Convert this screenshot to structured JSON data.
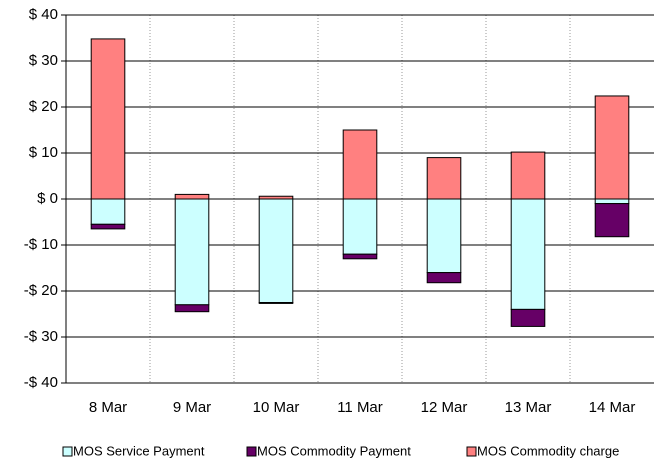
{
  "chart_data": {
    "type": "bar",
    "stacked": true,
    "categories": [
      "8 Mar",
      "9 Mar",
      "10 Mar",
      "11 Mar",
      "12 Mar",
      "13 Mar",
      "14 Mar"
    ],
    "series": [
      {
        "name": "MOS Service Payment",
        "color": "#ccffff",
        "values": [
          -5.5,
          -23,
          -22.5,
          -12,
          -16,
          -24,
          -1
        ]
      },
      {
        "name": "MOS Commodity Payment",
        "color": "#660066",
        "values": [
          -1,
          -1.5,
          -0.2,
          -1,
          -2.2,
          -3.7,
          -7.2
        ]
      },
      {
        "name": "MOS Commodity charge",
        "color": "#ff8080",
        "values": [
          34.8,
          1,
          0.6,
          15,
          9,
          10.2,
          22.4
        ]
      }
    ],
    "ylim": [
      -40,
      40
    ],
    "yticks": [
      {
        "value": -40,
        "label": "-$ 40"
      },
      {
        "value": -30,
        "label": "-$ 30"
      },
      {
        "value": -20,
        "label": "-$ 20"
      },
      {
        "value": -10,
        "label": "-$ 10"
      },
      {
        "value": 0,
        "label": "$ 0"
      },
      {
        "value": 10,
        "label": "$ 10"
      },
      {
        "value": 20,
        "label": "$ 20"
      },
      {
        "value": 30,
        "label": "$ 30"
      },
      {
        "value": 40,
        "label": "$ 40"
      }
    ],
    "grid": true
  }
}
